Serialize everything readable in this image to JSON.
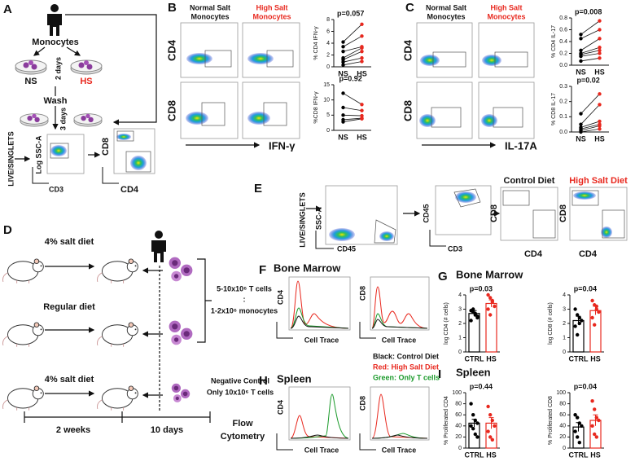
{
  "panel_a": {
    "letter": "A",
    "monocytes": "Monocytes",
    "ns": "NS",
    "hs": "HS",
    "two_days": "2 days",
    "wash": "Wash",
    "three_days": "3 days",
    "gate": "LIVE/SINGLETS",
    "ssc": "Log SSC-A",
    "cd3": "CD3",
    "cd8": "CD8",
    "cd4": "CD4"
  },
  "panel_b": {
    "letter": "B",
    "normal_1": "Normal Salt",
    "normal_2": "Monocytes",
    "high_1": "High Salt",
    "high_2": "Monocytes",
    "cd4": "CD4",
    "cd8": "CD8",
    "marker": "IFN-γ"
  },
  "panel_c": {
    "letter": "C",
    "normal_1": "Normal Salt",
    "normal_2": "Monocytes",
    "high_1": "High Salt",
    "high_2": "Monocytes",
    "cd4": "CD4",
    "cd8": "CD8",
    "marker": "IL-17A"
  },
  "panel_d": {
    "letter": "D",
    "diet_1": "4% salt diet",
    "diet_2": "Regular diet",
    "diet_3": "4% salt diet",
    "ratio_1": "5-10x10⁶ T cells",
    "ratio_sep": ":",
    "ratio_2": "1-2x10⁶ monocytes",
    "neg_1": "Negative Control",
    "neg_2": "Only 10x10⁶ T cells",
    "time_1": "2 weeks",
    "time_2": "10 days",
    "flow_1": "Flow",
    "flow_2": "Cytometry"
  },
  "panel_e": {
    "letter": "E",
    "gate": "LIVE/SINGLETS",
    "ssc": "SSC-A",
    "cd45_x": "CD45",
    "cd45_y": "CD45",
    "cd3": "CD3",
    "control": "Control Diet",
    "high": "High Salt Diet",
    "cd8_1": "CD8",
    "cd4_1": "CD4",
    "cd8_2": "CD8",
    "cd4_2": "CD4"
  },
  "panel_f": {
    "letter": "F",
    "title": "Bone Marrow",
    "cd4": "CD4",
    "cd8": "CD8",
    "x_1": "Cell Trace",
    "x_2": "Cell Trace"
  },
  "panel_g": {
    "letter": "G",
    "title": "Bone Marrow"
  },
  "panel_h": {
    "letter": "H",
    "title": "Spleen",
    "cd4": "CD4",
    "cd8": "CD8",
    "x_1": "Cell Trace",
    "x_2": "Cell Trace",
    "legend_1": "Black: Control Diet",
    "legend_2": "Red: High Salt Diet",
    "legend_3": "Green: Only T cells"
  },
  "panel_i": {
    "letter": "I",
    "title": "Spleen"
  },
  "chart_data": [
    {
      "type": "paired",
      "annotation": "p=0.057",
      "ylabel": "% CD4 IFN-γ",
      "categories": [
        "NS",
        "HS"
      ],
      "colors": [
        "#000000",
        "#e8281e"
      ],
      "ylim": [
        0,
        8
      ],
      "yticks": [
        0,
        2,
        4,
        6,
        8
      ],
      "series": [
        {
          "values": [
            4.2,
            7.2
          ]
        },
        {
          "values": [
            3.4,
            5.2
          ]
        },
        {
          "values": [
            2.6,
            3.4
          ]
        },
        {
          "values": [
            1.5,
            3.2
          ]
        },
        {
          "values": [
            1.2,
            2.6
          ]
        },
        {
          "values": [
            0.8,
            1.5
          ]
        },
        {
          "values": [
            0.3,
            0.9
          ]
        }
      ]
    },
    {
      "type": "paired",
      "annotation": "p=0.92",
      "ylabel": "%CD8 IFN-γ",
      "categories": [
        "NS",
        "HS"
      ],
      "colors": [
        "#000000",
        "#e8281e"
      ],
      "ylim": [
        0,
        15
      ],
      "yticks": [
        0,
        5,
        10,
        15
      ],
      "series": [
        {
          "values": [
            12.2,
            8.5
          ]
        },
        {
          "values": [
            7.5,
            6.5
          ]
        },
        {
          "values": [
            5.0,
            4.8
          ]
        },
        {
          "values": [
            3.5,
            4.0
          ]
        },
        {
          "values": [
            2.8,
            3.8
          ]
        }
      ]
    },
    {
      "type": "paired",
      "annotation": "p=0.008",
      "ylabel": "% CD4 IL-17",
      "categories": [
        "NS",
        "HS"
      ],
      "colors": [
        "#000000",
        "#e8281e"
      ],
      "ylim": [
        0,
        0.8
      ],
      "yticks": [
        {
          "value": 0,
          "label": "0.0"
        },
        0.2,
        0.4,
        0.6,
        0.8
      ],
      "series": [
        {
          "values": [
            0.52,
            0.75
          ]
        },
        {
          "values": [
            0.45,
            0.6
          ]
        },
        {
          "values": [
            0.25,
            0.45
          ]
        },
        {
          "values": [
            0.2,
            0.3
          ]
        },
        {
          "values": [
            0.18,
            0.25
          ]
        },
        {
          "values": [
            0.15,
            0.2
          ]
        },
        {
          "values": [
            0.07,
            0.12
          ]
        }
      ]
    },
    {
      "type": "paired",
      "annotation": "p=0.02",
      "ylabel": "% CD8 IL-17",
      "categories": [
        "NS",
        "HS"
      ],
      "colors": [
        "#000000",
        "#e8281e"
      ],
      "ylim": [
        0,
        0.3
      ],
      "yticks": [
        {
          "value": 0,
          "label": "0.0"
        },
        0.1,
        0.2,
        0.3
      ],
      "series": [
        {
          "values": [
            0.12,
            0.25
          ]
        },
        {
          "values": [
            0.05,
            0.18
          ]
        },
        {
          "values": [
            0.03,
            0.07
          ]
        },
        {
          "values": [
            0.02,
            0.05
          ]
        },
        {
          "values": [
            0.01,
            0.04
          ]
        },
        {
          "values": [
            0.0,
            0.02
          ]
        }
      ]
    },
    {
      "type": "bar",
      "annotation": "p=0.03",
      "ylabel": "log CD4 (# cells)",
      "categories": [
        "CTRL",
        "HS"
      ],
      "colors": [
        "#000000",
        "#e8281e"
      ],
      "ylim": [
        0,
        4
      ],
      "yticks": [
        0,
        1,
        2,
        3,
        4
      ],
      "values": [
        2.7,
        3.4
      ],
      "errors": [
        0.2,
        0.25
      ],
      "points": [
        [
          2.9,
          2.8,
          2.6,
          2.4,
          2.2,
          3.0,
          2.7,
          2.5
        ],
        [
          4.0,
          3.8,
          3.5,
          3.2,
          3.0,
          2.6,
          3.6
        ]
      ]
    },
    {
      "type": "bar",
      "annotation": "p=0.04",
      "ylabel": "log CD8 (# cells)",
      "categories": [
        "CTRL",
        "HS"
      ],
      "colors": [
        "#000000",
        "#e8281e"
      ],
      "ylim": [
        0,
        4
      ],
      "yticks": [
        0,
        1,
        2,
        3,
        4
      ],
      "values": [
        2.2,
        2.9
      ],
      "errors": [
        0.3,
        0.3
      ],
      "points": [
        [
          3.0,
          2.6,
          2.4,
          2.2,
          1.8,
          1.2,
          2.0
        ],
        [
          3.6,
          3.3,
          3.0,
          2.8,
          2.4,
          1.9,
          3.2
        ]
      ]
    },
    {
      "type": "bar",
      "annotation": "p=0.44",
      "ylabel": "% Proliferated CD4",
      "categories": [
        "CTRL",
        "HS"
      ],
      "colors": [
        "#000000",
        "#e8281e"
      ],
      "ylim": [
        0,
        100
      ],
      "yticks": [
        0,
        20,
        40,
        60,
        80,
        100
      ],
      "values": [
        45,
        45
      ],
      "errors": [
        7,
        10
      ],
      "points": [
        [
          80,
          60,
          50,
          45,
          40,
          35,
          25,
          20
        ],
        [
          75,
          60,
          50,
          40,
          30,
          20,
          15
        ]
      ]
    },
    {
      "type": "bar",
      "annotation": "p=0.04",
      "ylabel": "% Proliferated CD8",
      "categories": [
        "CTRL",
        "HS"
      ],
      "colors": [
        "#000000",
        "#e8281e"
      ],
      "ylim": [
        0,
        100
      ],
      "yticks": [
        0,
        20,
        40,
        60,
        80,
        100
      ],
      "values": [
        38,
        50
      ],
      "errors": [
        8,
        10
      ],
      "points": [
        [
          60,
          55,
          45,
          40,
          30,
          20,
          10
        ],
        [
          85,
          70,
          55,
          50,
          40,
          25,
          20
        ]
      ]
    }
  ]
}
